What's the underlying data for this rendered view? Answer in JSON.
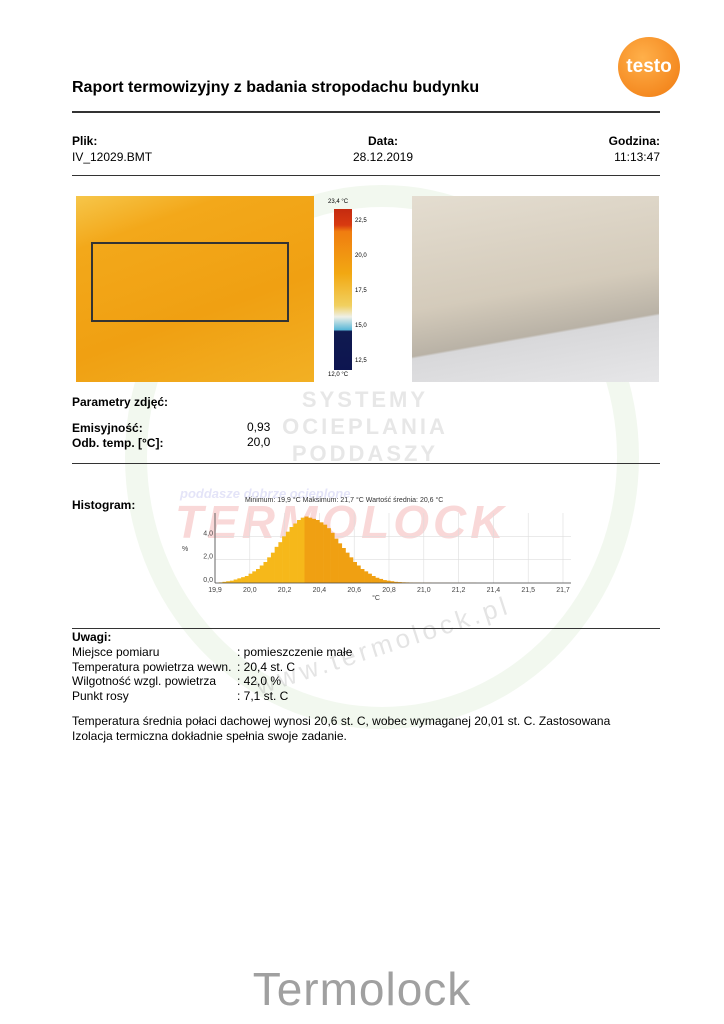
{
  "title": "Raport termowizyjny z badania stropodachu budynku",
  "logo": "testo",
  "header": {
    "file_label": "Plik:",
    "file_value": "IV_12029.BMT",
    "date_label": "Data:",
    "date_value": "28.12.2019",
    "time_label": "Godzina:",
    "time_value": "11:13:47"
  },
  "scale": {
    "max": "23,4 °C",
    "min": "12,0 °C",
    "ticks": [
      "22,5",
      "20,0",
      "17,5",
      "15,0",
      "12,5"
    ]
  },
  "params": {
    "heading": "Parametry zdjęć:",
    "rows": [
      {
        "label": "Emisyjność:",
        "value": "0,93"
      },
      {
        "label": "Odb. temp. [°C]:",
        "value": "20,0"
      }
    ]
  },
  "watermark": {
    "line1": "SYSTEMY",
    "line2": "OCIEPLANIA",
    "line3": "PODDASZY",
    "brand": "TERMOLOCK",
    "tagline": "poddasze dobrze ocieplone",
    "url": "www.termolock.pl"
  },
  "histogram": {
    "label": "Histogram:"
  },
  "chart_data": {
    "type": "bar",
    "title": "Minimum: 19,9 °C Maksimum: 21,7 °C Wartość średnia: 20,6 °C",
    "xlabel": "°C",
    "ylabel": "%",
    "xticks": [
      "19,9",
      "20,0",
      "20,2",
      "20,4",
      "20,6",
      "20,8",
      "21,0",
      "21,2",
      "21,4",
      "21,5",
      "21,7"
    ],
    "yticks": [
      "0,0",
      "2,0",
      "4,0"
    ],
    "ylim": [
      0,
      6
    ],
    "values": [
      0,
      0.05,
      0.1,
      0.15,
      0.2,
      0.3,
      0.4,
      0.5,
      0.6,
      0.8,
      1.0,
      1.2,
      1.5,
      1.8,
      2.2,
      2.6,
      3.1,
      3.5,
      4.0,
      4.4,
      4.8,
      5.1,
      5.4,
      5.6,
      5.7,
      5.6,
      5.5,
      5.4,
      5.2,
      5.0,
      4.7,
      4.3,
      3.8,
      3.4,
      3.0,
      2.6,
      2.2,
      1.8,
      1.5,
      1.2,
      1.0,
      0.8,
      0.6,
      0.45,
      0.35,
      0.25,
      0.2,
      0.15,
      0.1,
      0.08,
      0.06,
      0.05,
      0.04,
      0.03,
      0.03,
      0.02,
      0.02,
      0.02,
      0.01,
      0.01,
      0.01,
      0.01,
      0.01,
      0.01,
      0.01,
      0.01,
      0.01,
      0.01,
      0.01,
      0.01
    ]
  },
  "notes": {
    "heading": "Uwagi:",
    "rows": [
      {
        "label": "Miejsce pomiaru",
        "value": ": pomieszczenie małe"
      },
      {
        "label": "Temperatura powietrza wewn.",
        "value": ": 20,4 st. C"
      },
      {
        "label": "Wilgotność wzgl. powietrza",
        "value": ": 42,0 %"
      },
      {
        "label": "Punkt rosy",
        "value": ": 7,1 st. C"
      }
    ],
    "paragraph": "Temperatura średnia połaci dachowej wynosi 20,6 st. C, wobec wymaganej 20,01 st. C. Zastosowana Izolacja termiczna dokładnie spełnia swoje zadanie."
  },
  "footer": "Termolock"
}
